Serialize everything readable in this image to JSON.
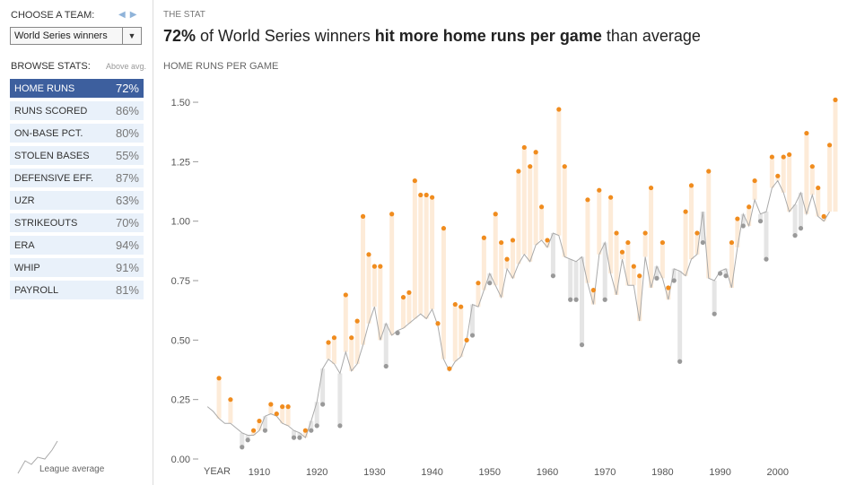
{
  "sidebar": {
    "choose_label": "CHOOSE A TEAM:",
    "prev_icon": "◀",
    "next_icon": "▶",
    "team_select": "World Series winners",
    "browse_label": "BROWSE STATS:",
    "above_avg_label": "Above avg.",
    "stats": [
      {
        "name": "HOME RUNS",
        "pct": "72%"
      },
      {
        "name": "RUNS SCORED",
        "pct": "86%"
      },
      {
        "name": "ON-BASE PCT.",
        "pct": "80%"
      },
      {
        "name": "STOLEN BASES",
        "pct": "55%"
      },
      {
        "name": "DEFENSIVE EFF.",
        "pct": "87%"
      },
      {
        "name": "UZR",
        "pct": "63%"
      },
      {
        "name": "STRIKEOUTS",
        "pct": "70%"
      },
      {
        "name": "ERA",
        "pct": "94%"
      },
      {
        "name": "WHIP",
        "pct": "91%"
      },
      {
        "name": "PAYROLL",
        "pct": "81%"
      }
    ],
    "legend_label": "League average"
  },
  "header": {
    "section": "THE STAT",
    "headline_pct": "72%",
    "headline_mid": " of World Series winners ",
    "headline_bold": "hit more home runs per game",
    "headline_end": " than average"
  },
  "colors": {
    "above": "#f08c1e",
    "below": "#999999",
    "above_bar": "#fdebd8",
    "below_bar": "#e5e5e5",
    "league_line": "#aaaaaa",
    "active_stat": "#3d5f9e"
  },
  "chart_data": {
    "type": "line",
    "ylabel": "HOME RUNS PER GAME",
    "xlabel": "YEAR",
    "x_ticks": [
      1910,
      1920,
      1930,
      1940,
      1950,
      1960,
      1970,
      1980,
      1990,
      2000
    ],
    "y_ticks": [
      "0.00",
      "0.25",
      "0.50",
      "0.75",
      "1.00",
      "1.25",
      "1.50"
    ],
    "xlim": [
      1901,
      2009
    ],
    "ylim": [
      0,
      1.5
    ],
    "league_average": [
      [
        1901,
        0.22
      ],
      [
        1902,
        0.2
      ],
      [
        1903,
        0.17
      ],
      [
        1904,
        0.15
      ],
      [
        1905,
        0.15
      ],
      [
        1906,
        0.13
      ],
      [
        1907,
        0.11
      ],
      [
        1908,
        0.1
      ],
      [
        1909,
        0.1
      ],
      [
        1910,
        0.12
      ],
      [
        1911,
        0.18
      ],
      [
        1912,
        0.19
      ],
      [
        1913,
        0.18
      ],
      [
        1914,
        0.15
      ],
      [
        1915,
        0.14
      ],
      [
        1916,
        0.12
      ],
      [
        1917,
        0.11
      ],
      [
        1918,
        0.09
      ],
      [
        1919,
        0.16
      ],
      [
        1920,
        0.24
      ],
      [
        1921,
        0.38
      ],
      [
        1922,
        0.42
      ],
      [
        1923,
        0.4
      ],
      [
        1924,
        0.36
      ],
      [
        1925,
        0.45
      ],
      [
        1926,
        0.37
      ],
      [
        1927,
        0.4
      ],
      [
        1928,
        0.48
      ],
      [
        1929,
        0.57
      ],
      [
        1930,
        0.64
      ],
      [
        1931,
        0.5
      ],
      [
        1932,
        0.57
      ],
      [
        1933,
        0.52
      ],
      [
        1934,
        0.54
      ],
      [
        1935,
        0.55
      ],
      [
        1936,
        0.57
      ],
      [
        1937,
        0.59
      ],
      [
        1938,
        0.61
      ],
      [
        1939,
        0.59
      ],
      [
        1940,
        0.63
      ],
      [
        1941,
        0.56
      ],
      [
        1942,
        0.42
      ],
      [
        1943,
        0.37
      ],
      [
        1944,
        0.41
      ],
      [
        1945,
        0.43
      ],
      [
        1946,
        0.5
      ],
      [
        1947,
        0.65
      ],
      [
        1948,
        0.64
      ],
      [
        1949,
        0.71
      ],
      [
        1950,
        0.78
      ],
      [
        1951,
        0.73
      ],
      [
        1952,
        0.68
      ],
      [
        1953,
        0.8
      ],
      [
        1954,
        0.76
      ],
      [
        1955,
        0.82
      ],
      [
        1956,
        0.86
      ],
      [
        1957,
        0.83
      ],
      [
        1958,
        0.9
      ],
      [
        1959,
        0.92
      ],
      [
        1960,
        0.89
      ],
      [
        1961,
        0.95
      ],
      [
        1962,
        0.94
      ],
      [
        1963,
        0.85
      ],
      [
        1964,
        0.84
      ],
      [
        1965,
        0.83
      ],
      [
        1966,
        0.85
      ],
      [
        1967,
        0.74
      ],
      [
        1968,
        0.65
      ],
      [
        1969,
        0.86
      ],
      [
        1970,
        0.91
      ],
      [
        1971,
        0.78
      ],
      [
        1972,
        0.69
      ],
      [
        1973,
        0.84
      ],
      [
        1974,
        0.73
      ],
      [
        1975,
        0.73
      ],
      [
        1976,
        0.58
      ],
      [
        1977,
        0.85
      ],
      [
        1978,
        0.72
      ],
      [
        1979,
        0.81
      ],
      [
        1980,
        0.76
      ],
      [
        1981,
        0.67
      ],
      [
        1982,
        0.8
      ],
      [
        1983,
        0.79
      ],
      [
        1984,
        0.77
      ],
      [
        1985,
        0.84
      ],
      [
        1986,
        0.86
      ],
      [
        1987,
        1.04
      ],
      [
        1988,
        0.76
      ],
      [
        1989,
        0.75
      ],
      [
        1990,
        0.79
      ],
      [
        1991,
        0.8
      ],
      [
        1992,
        0.72
      ],
      [
        1993,
        0.89
      ],
      [
        1994,
        1.03
      ],
      [
        1995,
        0.98
      ],
      [
        1996,
        1.09
      ],
      [
        1997,
        1.03
      ],
      [
        1998,
        1.04
      ],
      [
        1999,
        1.14
      ],
      [
        2000,
        1.17
      ],
      [
        2001,
        1.12
      ],
      [
        2002,
        1.04
      ],
      [
        2003,
        1.07
      ],
      [
        2004,
        1.12
      ],
      [
        2005,
        1.03
      ],
      [
        2006,
        1.11
      ],
      [
        2007,
        1.02
      ],
      [
        2008,
        1.0
      ],
      [
        2009,
        1.04
      ]
    ],
    "winners": [
      [
        1903,
        0.34
      ],
      [
        1905,
        0.25
      ],
      [
        1907,
        0.05
      ],
      [
        1908,
        0.08
      ],
      [
        1909,
        0.12
      ],
      [
        1910,
        0.16
      ],
      [
        1911,
        0.12
      ],
      [
        1912,
        0.23
      ],
      [
        1913,
        0.19
      ],
      [
        1914,
        0.22
      ],
      [
        1915,
        0.22
      ],
      [
        1916,
        0.09
      ],
      [
        1917,
        0.09
      ],
      [
        1918,
        0.12
      ],
      [
        1919,
        0.12
      ],
      [
        1920,
        0.14
      ],
      [
        1921,
        0.23
      ],
      [
        1922,
        0.49
      ],
      [
        1923,
        0.51
      ],
      [
        1924,
        0.14
      ],
      [
        1925,
        0.69
      ],
      [
        1926,
        0.51
      ],
      [
        1927,
        0.58
      ],
      [
        1928,
        1.02
      ],
      [
        1929,
        0.86
      ],
      [
        1930,
        0.81
      ],
      [
        1931,
        0.81
      ],
      [
        1932,
        0.39
      ],
      [
        1933,
        1.03
      ],
      [
        1934,
        0.53
      ],
      [
        1935,
        0.68
      ],
      [
        1936,
        0.7
      ],
      [
        1937,
        1.17
      ],
      [
        1938,
        1.11
      ],
      [
        1939,
        1.11
      ],
      [
        1940,
        1.1
      ],
      [
        1941,
        0.57
      ],
      [
        1942,
        0.97
      ],
      [
        1943,
        0.38
      ],
      [
        1944,
        0.65
      ],
      [
        1945,
        0.64
      ],
      [
        1946,
        0.5
      ],
      [
        1947,
        0.52
      ],
      [
        1948,
        0.74
      ],
      [
        1949,
        0.93
      ],
      [
        1950,
        0.74
      ],
      [
        1951,
        1.03
      ],
      [
        1952,
        0.91
      ],
      [
        1953,
        0.84
      ],
      [
        1954,
        0.92
      ],
      [
        1955,
        1.21
      ],
      [
        1956,
        1.31
      ],
      [
        1957,
        1.23
      ],
      [
        1958,
        1.29
      ],
      [
        1959,
        1.06
      ],
      [
        1960,
        0.92
      ],
      [
        1961,
        0.77
      ],
      [
        1962,
        1.47
      ],
      [
        1963,
        1.23
      ],
      [
        1964,
        0.67
      ],
      [
        1965,
        0.67
      ],
      [
        1966,
        0.48
      ],
      [
        1967,
        1.09
      ],
      [
        1968,
        0.71
      ],
      [
        1969,
        1.13
      ],
      [
        1970,
        0.67
      ],
      [
        1971,
        1.1
      ],
      [
        1972,
        0.95
      ],
      [
        1973,
        0.87
      ],
      [
        1974,
        0.91
      ],
      [
        1975,
        0.81
      ],
      [
        1976,
        0.77
      ],
      [
        1977,
        0.95
      ],
      [
        1978,
        1.14
      ],
      [
        1979,
        0.76
      ],
      [
        1980,
        0.91
      ],
      [
        1981,
        0.72
      ],
      [
        1982,
        0.75
      ],
      [
        1983,
        0.41
      ],
      [
        1984,
        1.04
      ],
      [
        1985,
        1.15
      ],
      [
        1986,
        0.95
      ],
      [
        1987,
        0.91
      ],
      [
        1988,
        1.21
      ],
      [
        1989,
        0.61
      ],
      [
        1990,
        0.78
      ],
      [
        1991,
        0.77
      ],
      [
        1992,
        0.91
      ],
      [
        1993,
        1.01
      ],
      [
        1994,
        0.98
      ],
      [
        1995,
        1.06
      ],
      [
        1996,
        1.17
      ],
      [
        1997,
        1.0
      ],
      [
        1998,
        0.84
      ],
      [
        1999,
        1.27
      ],
      [
        2000,
        1.19
      ],
      [
        2001,
        1.27
      ],
      [
        2002,
        1.28
      ],
      [
        2003,
        0.94
      ],
      [
        2004,
        0.97
      ],
      [
        2005,
        1.37
      ],
      [
        2006,
        1.23
      ],
      [
        2007,
        1.14
      ],
      [
        2008,
        1.02
      ],
      [
        2009,
        1.32
      ],
      [
        2010,
        1.51
      ]
    ]
  }
}
